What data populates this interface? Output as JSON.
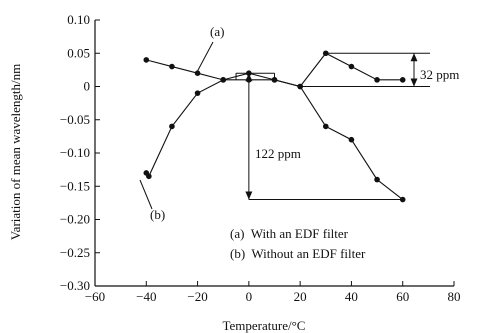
{
  "chart_data": {
    "type": "line",
    "title": "",
    "xlabel": "Temperature/°C",
    "ylabel": "Variation of mean wavelength/nm",
    "xlim": [
      -60,
      80
    ],
    "ylim": [
      -0.3,
      0.1
    ],
    "x_ticks": [
      -60,
      -40,
      -20,
      0,
      20,
      40,
      60,
      80
    ],
    "y_ticks": [
      -0.3,
      -0.25,
      -0.2,
      -0.15,
      -0.1,
      -0.05,
      0,
      0.05,
      0.1
    ],
    "x_tick_labels": [
      "−60",
      "−40",
      "−20",
      "0",
      "20",
      "40",
      "60",
      "80"
    ],
    "y_tick_labels": [
      "−0.30",
      "−0.25",
      "−0.20",
      "−0.15",
      "−0.10",
      "−0.05",
      "0",
      "0.05",
      "0.10"
    ],
    "grid": false,
    "legend_position": "bottom-right",
    "legend": [
      "(a)  With an EDF filter",
      "(b)  Without an EDF filter"
    ],
    "series": [
      {
        "name": "(a)",
        "x": [
          -40,
          -30,
          -20,
          -10,
          0,
          10,
          20,
          30,
          40,
          50,
          60
        ],
        "y": [
          0.04,
          0.03,
          0.02,
          0.01,
          0.01,
          0.01,
          0.0,
          0.05,
          0.03,
          0.01,
          0.01
        ]
      },
      {
        "name": "(b)",
        "x": [
          -40,
          -39,
          -30,
          -20,
          -10,
          0,
          10,
          20,
          30,
          40,
          50,
          60
        ],
        "y": [
          -0.13,
          -0.135,
          -0.06,
          -0.01,
          0.01,
          0.02,
          0.01,
          0.0,
          -0.06,
          -0.08,
          -0.14,
          -0.17
        ]
      }
    ],
    "annotations": {
      "label_a": "(a)",
      "label_b": "(b)",
      "range_32": "32 ppm",
      "range_122": "122 ppm"
    }
  }
}
